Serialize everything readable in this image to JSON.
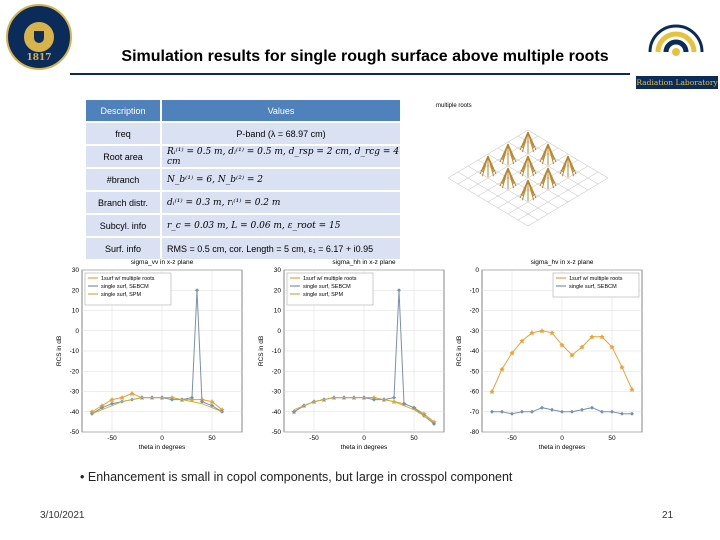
{
  "slide": {
    "title": "Simulation results for single rough surface above multiple roots",
    "logo_left_year": "1817",
    "logo_right_text": "Radiation Laboratory",
    "bullet": "Enhancement is small in copol components, but large in crosspol component",
    "date": "3/10/2021",
    "page_number": "21"
  },
  "param_table": {
    "headers": [
      "Description",
      "Values"
    ],
    "rows": [
      {
        "label": "freq",
        "value": "P-band (λ = 68.97 cm)"
      },
      {
        "label": "Root area",
        "value": "Rᵢ⁽¹⁾ = 0.5 m, dᵢ⁽¹⁾ = 0.5 m, d_rsp = 2 cm, d_rcg = 4 cm"
      },
      {
        "label": "#branch",
        "value": "N_b⁽¹⁾ = 6, N_b⁽²⁾ = 2"
      },
      {
        "label": "Branch distr.",
        "value": "dᵢ⁽¹⁾ = 0.3 m, rᵢ⁽¹⁾ = 0.2 m"
      },
      {
        "label": "Subcyl. info",
        "value": "r_c = 0.03 m, L = 0.06 m, ε_root = 15"
      },
      {
        "label": "Surf. info",
        "value": "RMS = 0.5 cm, cor. Length = 5 cm, ε₁ = 6.17 + i0.95"
      }
    ]
  },
  "figure_3d": {
    "label": "multiple roots"
  },
  "chart_data": [
    {
      "type": "line",
      "title": "sigma_vv in x-z plane",
      "xlabel": "theta in degrees",
      "ylabel": "RCS in dB",
      "xlim": [
        -80,
        80
      ],
      "ylim": [
        -50,
        30
      ],
      "xticks": [
        "-50",
        "0",
        "50"
      ],
      "yticks": [
        "30",
        "20",
        "10",
        "0",
        "-10",
        "-20",
        "-30",
        "-40",
        "-50"
      ],
      "legend_position": "top-left",
      "series": [
        {
          "name": "1surf w/ multiple roots",
          "color": "#e8a23a",
          "marker": "star",
          "x": [
            -70,
            -60,
            -50,
            -40,
            -30,
            -20,
            -10,
            0,
            10,
            20,
            30,
            40,
            50,
            60
          ],
          "y": [
            -40,
            -37,
            -34,
            -33,
            -31,
            -33,
            -33,
            -33,
            -33,
            -34,
            -34,
            -34,
            -35,
            -39
          ]
        },
        {
          "name": "single surf, SEBCM",
          "color": "#7a8fb0",
          "marker": "diamond",
          "x": [
            -70,
            -60,
            -50,
            -40,
            -30,
            -20,
            -10,
            0,
            10,
            20,
            30,
            35,
            40,
            50,
            60
          ],
          "y": [
            -41,
            -38,
            -36,
            -35,
            -34,
            -33,
            -33,
            -33,
            -34,
            -34,
            -33,
            20,
            -35,
            -37,
            -40
          ]
        },
        {
          "name": "single surf, SPM",
          "color": "#c9b436",
          "marker": "none",
          "x": [
            -70,
            -60,
            -50,
            -40,
            -30,
            -20,
            -10,
            0,
            10,
            20,
            30,
            40,
            50,
            60
          ],
          "y": [
            -41,
            -39,
            -37,
            -35,
            -34,
            -33,
            -33,
            -33,
            -33,
            -34,
            -35,
            -36,
            -38,
            -40
          ]
        }
      ]
    },
    {
      "type": "line",
      "title": "sigma_hh in x-z plane",
      "xlabel": "theta in degrees",
      "ylabel": "RCS in dB",
      "xlim": [
        -80,
        80
      ],
      "ylim": [
        -50,
        30
      ],
      "xticks": [
        "-50",
        "0",
        "50"
      ],
      "yticks": [
        "30",
        "20",
        "10",
        "0",
        "-10",
        "-20",
        "-30",
        "-40",
        "-50"
      ],
      "legend_position": "top-left",
      "series": [
        {
          "name": "1surf w/ multiple roots",
          "color": "#e8a23a",
          "marker": "star",
          "x": [
            -70,
            -60,
            -50,
            -40,
            -30,
            -20,
            -10,
            0,
            10,
            20,
            30,
            40,
            50,
            60,
            70
          ],
          "y": [
            -40,
            -37,
            -35,
            -34,
            -33,
            -33,
            -33,
            -33,
            -33,
            -34,
            -35,
            -36,
            -38,
            -41,
            -45
          ]
        },
        {
          "name": "single surf, SEBCM",
          "color": "#7a8fb0",
          "marker": "diamond",
          "x": [
            -70,
            -60,
            -50,
            -40,
            -30,
            -20,
            -10,
            0,
            10,
            20,
            30,
            35,
            40,
            50,
            60,
            70
          ],
          "y": [
            -40,
            -37,
            -35,
            -34,
            -33,
            -33,
            -33,
            -33,
            -34,
            -34,
            -33,
            20,
            -36,
            -38,
            -42,
            -46
          ]
        },
        {
          "name": "single surf, SPM",
          "color": "#c9b436",
          "marker": "none",
          "x": [
            -70,
            -60,
            -50,
            -40,
            -30,
            -20,
            -10,
            0,
            10,
            20,
            30,
            40,
            50,
            60,
            70
          ],
          "y": [
            -39,
            -37,
            -35,
            -34,
            -33,
            -33,
            -33,
            -33,
            -33,
            -34,
            -35,
            -37,
            -39,
            -42,
            -45
          ]
        }
      ]
    },
    {
      "type": "line",
      "title": "sigma_hv in x-z plane",
      "xlabel": "theta in degrees",
      "ylabel": "RCS in dB",
      "xlim": [
        -80,
        80
      ],
      "ylim": [
        -80,
        0
      ],
      "xticks": [
        "-50",
        "0",
        "50"
      ],
      "yticks": [
        "0",
        "-10",
        "-20",
        "-30",
        "-40",
        "-50",
        "-60",
        "-70",
        "-80"
      ],
      "legend_position": "top-right",
      "series": [
        {
          "name": "1surf w/ multiple roots",
          "color": "#e8a23a",
          "marker": "star",
          "x": [
            -70,
            -60,
            -50,
            -40,
            -30,
            -20,
            -10,
            0,
            10,
            20,
            30,
            40,
            50,
            60,
            70
          ],
          "y": [
            -60,
            -49,
            -41,
            -35,
            -31,
            -30,
            -31,
            -37,
            -42,
            -38,
            -33,
            -33,
            -38,
            -48,
            -59
          ]
        },
        {
          "name": "single surf, SEBCM",
          "color": "#7a8fb0",
          "marker": "diamond",
          "x": [
            -70,
            -60,
            -50,
            -40,
            -30,
            -20,
            -10,
            0,
            10,
            20,
            30,
            40,
            50,
            60,
            70
          ],
          "y": [
            -70,
            -70,
            -71,
            -70,
            -70,
            -68,
            -69,
            -70,
            -70,
            -69,
            -68,
            -70,
            -70,
            -71,
            -71
          ]
        }
      ]
    }
  ]
}
